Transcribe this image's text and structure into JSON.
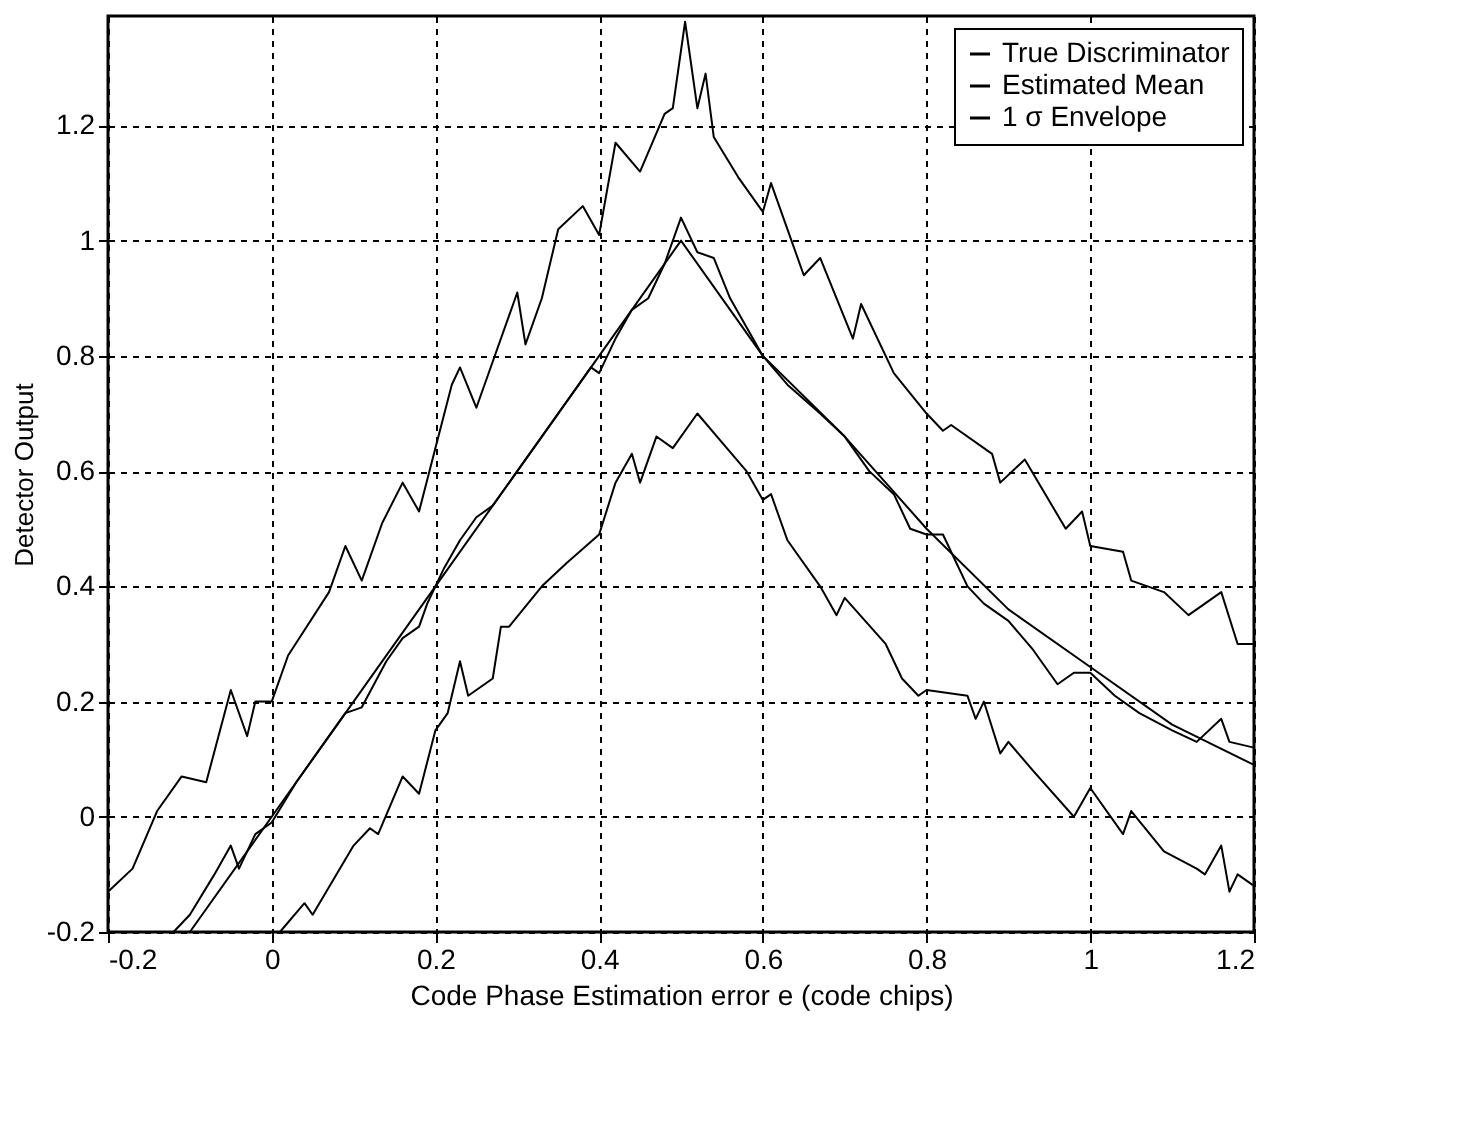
{
  "chart_data": {
    "type": "line",
    "xlabel": "Code Phase Estimation error e (code chips)",
    "ylabel": "Detector Output",
    "xlim": [
      -0.2,
      1.2
    ],
    "ylim": [
      -0.2,
      1.39
    ],
    "xticks": [
      -0.2,
      0,
      0.2,
      0.4,
      0.6,
      0.8,
      1,
      1.2
    ],
    "yticks": [
      -0.2,
      0,
      0.2,
      0.4,
      0.6,
      0.8,
      1,
      1.2
    ],
    "grid": true,
    "legend": "top right",
    "line_style": "solid",
    "marker": "none",
    "series": [
      {
        "name": "True Discriminator",
        "color": "#000000",
        "x": [
          -0.12,
          -0.1,
          -0.07,
          -0.05,
          -0.04,
          -0.02,
          0,
          0.03,
          0.06,
          0.09,
          0.11,
          0.14,
          0.16,
          0.18,
          0.19,
          0.21,
          0.23,
          0.25,
          0.27,
          0.3,
          0.33,
          0.36,
          0.39,
          0.4,
          0.42,
          0.44,
          0.46,
          0.48,
          0.5,
          0.52,
          0.54,
          0.56,
          0.6,
          0.63,
          0.67,
          0.7,
          0.73,
          0.76,
          0.78,
          0.8,
          0.82,
          0.85,
          0.87,
          0.9,
          0.93,
          0.96,
          0.98,
          1.0,
          1.03,
          1.06,
          1.1,
          1.13,
          1.16,
          1.17,
          1.2
        ],
        "values": [
          -0.2,
          -0.17,
          -0.1,
          -0.05,
          -0.09,
          -0.03,
          -0.01,
          0.06,
          0.12,
          0.18,
          0.19,
          0.27,
          0.31,
          0.33,
          0.37,
          0.43,
          0.48,
          0.52,
          0.54,
          0.6,
          0.66,
          0.72,
          0.78,
          0.77,
          0.83,
          0.88,
          0.9,
          0.96,
          1.04,
          0.98,
          0.97,
          0.9,
          0.8,
          0.75,
          0.7,
          0.66,
          0.6,
          0.56,
          0.5,
          0.49,
          0.49,
          0.4,
          0.37,
          0.34,
          0.29,
          0.23,
          0.25,
          0.25,
          0.21,
          0.18,
          0.15,
          0.13,
          0.17,
          0.13,
          0.12
        ]
      },
      {
        "name": "Estimated Mean",
        "color": "#000000",
        "x": [
          -0.1,
          0,
          0.1,
          0.2,
          0.3,
          0.4,
          0.5,
          0.6,
          0.7,
          0.75,
          0.8,
          0.9,
          1.0,
          1.1,
          1.2
        ],
        "values": [
          -0.2,
          0,
          0.2,
          0.4,
          0.6,
          0.8,
          1.0,
          0.8,
          0.66,
          0.58,
          0.5,
          0.36,
          0.26,
          0.16,
          0.09
        ]
      },
      {
        "name": "1 σ Envelope",
        "color": "#000000",
        "x": [
          -0.2,
          -0.17,
          -0.14,
          -0.11,
          -0.08,
          -0.05,
          -0.03,
          -0.02,
          0,
          0.02,
          0.07,
          0.09,
          0.11,
          0.135,
          0.16,
          0.18,
          0.2,
          0.22,
          0.23,
          0.25,
          0.3,
          0.31,
          0.33,
          0.35,
          0.38,
          0.4,
          0.42,
          0.45,
          0.48,
          0.49,
          0.505,
          0.52,
          0.53,
          0.54,
          0.57,
          0.6,
          0.61,
          0.65,
          0.67,
          0.71,
          0.72,
          0.76,
          0.8,
          0.82,
          0.83,
          0.88,
          0.89,
          0.92,
          0.97,
          0.99,
          1.0,
          1.04,
          1.05,
          1.09,
          1.12,
          1.16,
          1.18,
          1.2
        ],
        "values": [
          -0.13,
          -0.09,
          0.01,
          0.07,
          0.06,
          0.22,
          0.14,
          0.2,
          0.2,
          0.28,
          0.39,
          0.47,
          0.41,
          0.51,
          0.58,
          0.53,
          0.64,
          0.75,
          0.78,
          0.71,
          0.91,
          0.82,
          0.9,
          1.02,
          1.06,
          1.01,
          1.17,
          1.12,
          1.22,
          1.23,
          1.38,
          1.23,
          1.29,
          1.18,
          1.11,
          1.05,
          1.1,
          0.94,
          0.97,
          0.83,
          0.89,
          0.77,
          0.7,
          0.67,
          0.68,
          0.63,
          0.58,
          0.62,
          0.5,
          0.53,
          0.47,
          0.46,
          0.41,
          0.39,
          0.35,
          0.39,
          0.3,
          0.3
        ]
      },
      {
        "color": "#000000",
        "x": [
          0.01,
          0.04,
          0.05,
          0.1,
          0.12,
          0.13,
          0.16,
          0.18,
          0.2,
          0.215,
          0.23,
          0.24,
          0.27,
          0.28,
          0.29,
          0.33,
          0.36,
          0.4,
          0.42,
          0.44,
          0.45,
          0.47,
          0.49,
          0.52,
          0.55,
          0.58,
          0.6,
          0.61,
          0.63,
          0.67,
          0.69,
          0.7,
          0.75,
          0.77,
          0.79,
          0.8,
          0.85,
          0.86,
          0.87,
          0.89,
          0.9,
          0.93,
          0.98,
          1.0,
          1.04,
          1.05,
          1.09,
          1.13,
          1.14,
          1.16,
          1.17,
          1.18,
          1.2
        ],
        "values": [
          -0.2,
          -0.15,
          -0.17,
          -0.05,
          -0.02,
          -0.03,
          0.07,
          0.04,
          0.15,
          0.18,
          0.27,
          0.21,
          0.24,
          0.33,
          0.33,
          0.4,
          0.44,
          0.49,
          0.58,
          0.63,
          0.58,
          0.66,
          0.64,
          0.7,
          0.65,
          0.6,
          0.55,
          0.56,
          0.48,
          0.4,
          0.35,
          0.38,
          0.3,
          0.24,
          0.21,
          0.22,
          0.21,
          0.17,
          0.2,
          0.11,
          0.13,
          0.08,
          0.0,
          0.05,
          -0.03,
          0.01,
          -0.06,
          -0.09,
          -0.1,
          -0.05,
          -0.13,
          -0.1,
          -0.12
        ]
      }
    ]
  }
}
